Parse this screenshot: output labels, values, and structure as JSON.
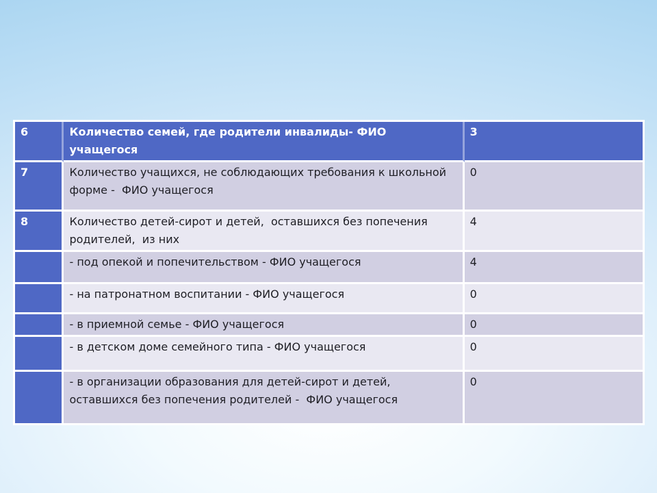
{
  "colors": {
    "header_row_blue": "#4F68C5",
    "band_dark_lavender": "#D1CFE2",
    "band_light_lavender": "#E9E8F2",
    "divider_white": "#FFFFFF",
    "body_text": "#1E1E24",
    "header_text": "#FFFFFF",
    "background_edge_blue": "#A6D3F0",
    "background_center_white": "#FFFFFF"
  },
  "table": {
    "rows": [
      {
        "num": "6",
        "label": "Количество семей, где родители инвалиды- ФИО учащегося",
        "value": "3"
      },
      {
        "num": "7",
        "label": "Количество учащихся, не соблюдающих требования к школьной\nформе -  ФИО учащегося",
        "value": "0"
      },
      {
        "num": "8",
        "label": "Количество детей-сирот и детей,  оставшихся без попечения\nродителей,  из них",
        "value": "4"
      },
      {
        "num": "",
        "label": "- под опекой и попечительством - ФИО учащегося",
        "value": "4"
      },
      {
        "num": "",
        "label": "- на патронатном воспитании - ФИО учащегося",
        "value": "0"
      },
      {
        "num": "",
        "label": "- в приемной семье - ФИО учащегося",
        "value": "0"
      },
      {
        "num": "",
        "label": "- в детском доме семейного типа - ФИО учащегося",
        "value": "0"
      },
      {
        "num": "",
        "label": "- в организации образования для детей-сирот и детей,\nоставшихся без попечения родителей -  ФИО учащегося",
        "value": "0"
      }
    ]
  }
}
